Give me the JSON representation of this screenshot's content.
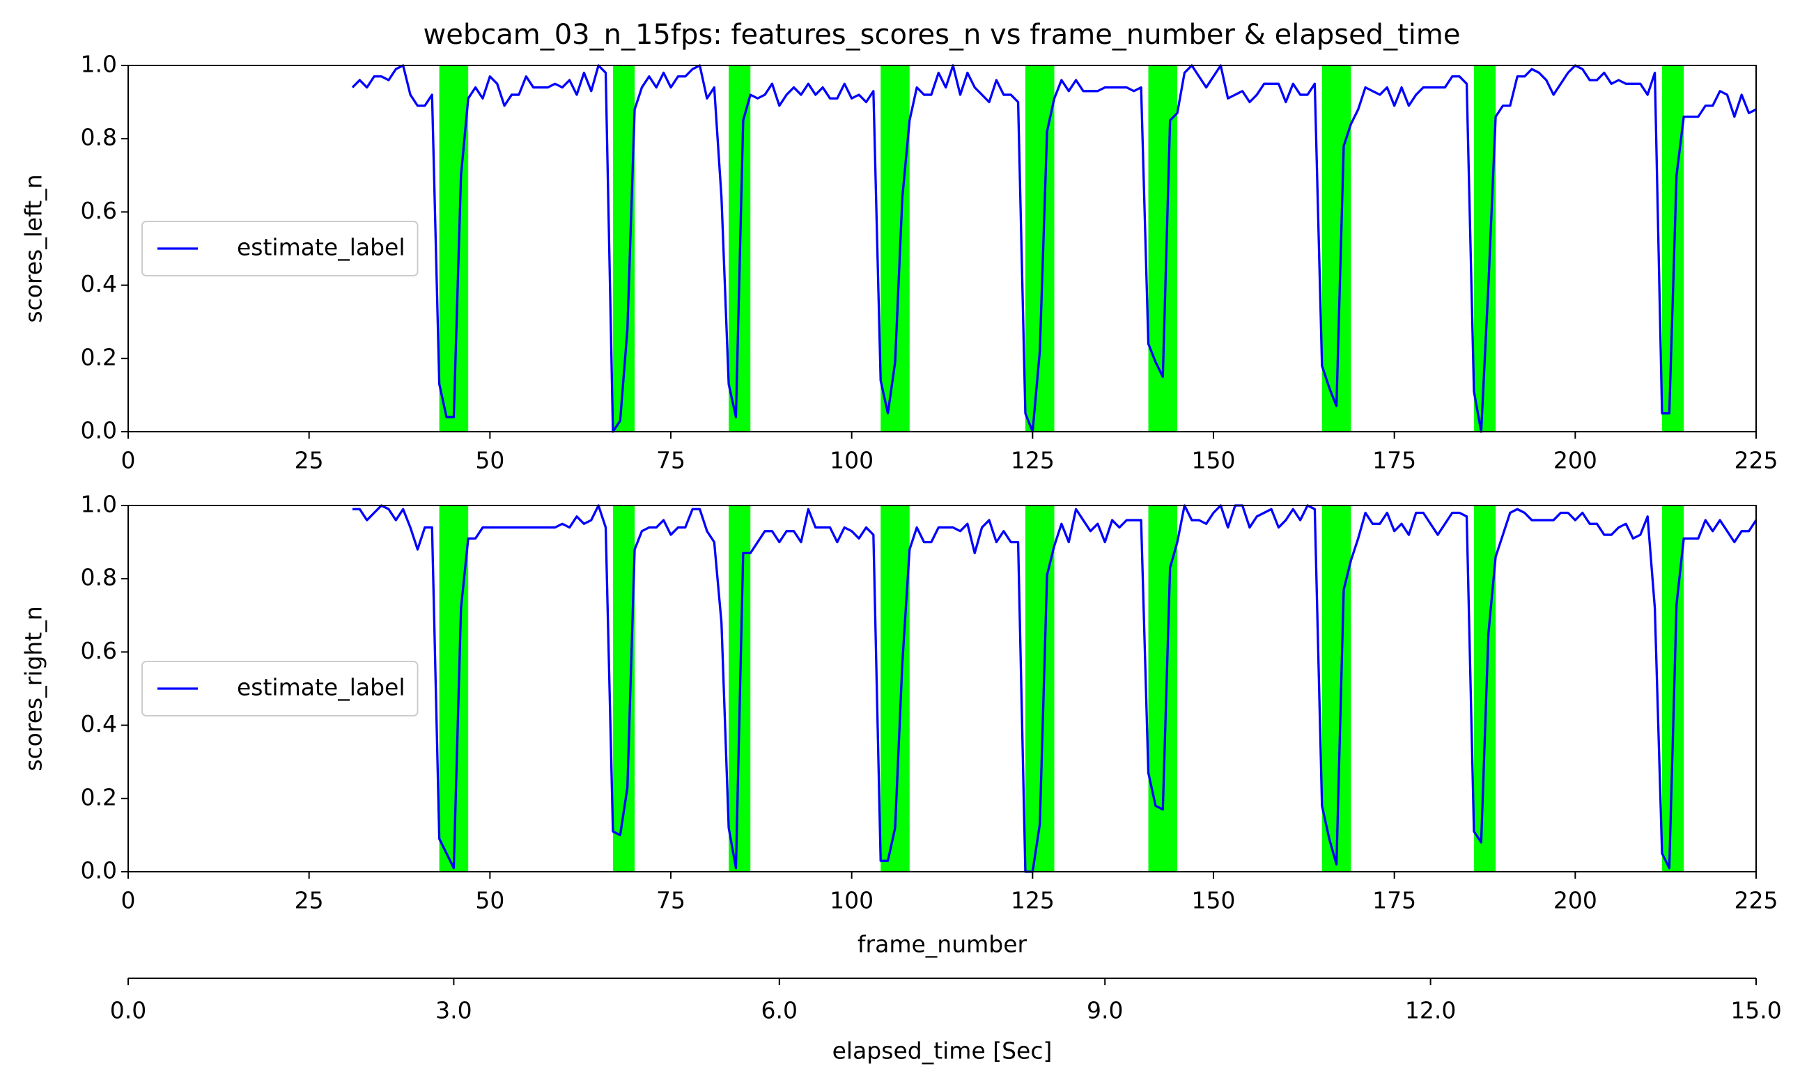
{
  "chart_data": [
    {
      "type": "line",
      "title": "webcam_03_n_15fps: features_scores_n vs frame_number & elapsed_time",
      "ylabel": "scores_left_n",
      "xlim": [
        0,
        225
      ],
      "xticks": [
        0,
        25,
        50,
        75,
        100,
        125,
        150,
        175,
        200,
        225
      ],
      "ylim": [
        0,
        1
      ],
      "yticks": [
        {
          "value": 0,
          "label": "0.0"
        },
        {
          "value": 0.2,
          "label": "0.2"
        },
        {
          "value": 0.4,
          "label": "0.4"
        },
        {
          "value": 0.6,
          "label": "0.6"
        },
        {
          "value": 0.8,
          "label": "0.8"
        },
        {
          "value": 1,
          "label": "1.0"
        }
      ],
      "legend": "center left",
      "span_color": "#00ff00",
      "spans": [
        [
          43,
          47
        ],
        [
          67,
          70
        ],
        [
          83,
          86
        ],
        [
          104,
          108
        ],
        [
          124,
          128
        ],
        [
          141,
          145
        ],
        [
          165,
          169
        ],
        [
          186,
          189
        ],
        [
          212,
          215
        ]
      ],
      "x": [
        31,
        32,
        33,
        34,
        35,
        36,
        37,
        38,
        39,
        40,
        41,
        42,
        43,
        44,
        45,
        46,
        47,
        48,
        49,
        50,
        51,
        52,
        53,
        54,
        55,
        56,
        57,
        58,
        59,
        60,
        61,
        62,
        63,
        64,
        65,
        66,
        67,
        68,
        69,
        70,
        71,
        72,
        73,
        74,
        75,
        76,
        77,
        78,
        79,
        80,
        81,
        82,
        83,
        84,
        85,
        86,
        87,
        88,
        89,
        90,
        91,
        92,
        93,
        94,
        95,
        96,
        97,
        98,
        99,
        100,
        101,
        102,
        103,
        104,
        105,
        106,
        107,
        108,
        109,
        110,
        111,
        112,
        113,
        114,
        115,
        116,
        117,
        118,
        119,
        120,
        121,
        122,
        123,
        124,
        125,
        126,
        127,
        128,
        129,
        130,
        131,
        132,
        133,
        134,
        135,
        136,
        137,
        138,
        139,
        140,
        141,
        142,
        143,
        144,
        145,
        146,
        147,
        148,
        149,
        150,
        151,
        152,
        153,
        154,
        155,
        156,
        157,
        158,
        159,
        160,
        161,
        162,
        163,
        164,
        165,
        166,
        167,
        168,
        169,
        170,
        171,
        172,
        173,
        174,
        175,
        176,
        177,
        178,
        179,
        180,
        181,
        182,
        183,
        184,
        185,
        186,
        187,
        188,
        189,
        190,
        191,
        192,
        193,
        194,
        195,
        196,
        197,
        198,
        199,
        200,
        201,
        202,
        203,
        204,
        205,
        206,
        207,
        208,
        209,
        210,
        211,
        212,
        213,
        214,
        215,
        216,
        217,
        218,
        219,
        220,
        221,
        222,
        223,
        224,
        225
      ],
      "series": [
        {
          "name": "estimate_label",
          "color": "#0000ff",
          "values": [
            0.94,
            0.96,
            0.94,
            0.97,
            0.97,
            0.96,
            0.99,
            1.0,
            0.92,
            0.89,
            0.89,
            0.92,
            0.13,
            0.04,
            0.04,
            0.7,
            0.91,
            0.94,
            0.91,
            0.97,
            0.95,
            0.89,
            0.92,
            0.92,
            0.97,
            0.94,
            0.94,
            0.94,
            0.95,
            0.94,
            0.96,
            0.92,
            0.98,
            0.93,
            1.0,
            0.98,
            0.0,
            0.03,
            0.28,
            0.88,
            0.94,
            0.97,
            0.94,
            0.98,
            0.94,
            0.97,
            0.97,
            0.99,
            1.0,
            0.91,
            0.94,
            0.64,
            0.13,
            0.04,
            0.85,
            0.92,
            0.91,
            0.92,
            0.95,
            0.89,
            0.92,
            0.94,
            0.92,
            0.95,
            0.92,
            0.94,
            0.91,
            0.91,
            0.95,
            0.91,
            0.92,
            0.9,
            0.93,
            0.14,
            0.05,
            0.19,
            0.64,
            0.85,
            0.94,
            0.92,
            0.92,
            0.98,
            0.94,
            1.0,
            0.92,
            0.98,
            0.94,
            0.92,
            0.9,
            0.96,
            0.92,
            0.92,
            0.9,
            0.05,
            0.0,
            0.22,
            0.82,
            0.91,
            0.96,
            0.93,
            0.96,
            0.93,
            0.93,
            0.93,
            0.94,
            0.94,
            0.94,
            0.94,
            0.93,
            0.94,
            0.24,
            0.19,
            0.15,
            0.85,
            0.87,
            0.98,
            1.0,
            0.97,
            0.94,
            0.97,
            1.0,
            0.91,
            0.92,
            0.93,
            0.9,
            0.92,
            0.95,
            0.95,
            0.95,
            0.9,
            0.95,
            0.92,
            0.92,
            0.95,
            0.18,
            0.12,
            0.07,
            0.78,
            0.84,
            0.88,
            0.94,
            0.93,
            0.92,
            0.94,
            0.89,
            0.94,
            0.89,
            0.92,
            0.94,
            0.94,
            0.94,
            0.94,
            0.97,
            0.97,
            0.95,
            0.11,
            0.0,
            0.4,
            0.86,
            0.89,
            0.89,
            0.97,
            0.97,
            0.99,
            0.98,
            0.96,
            0.92,
            0.95,
            0.98,
            1.0,
            0.99,
            0.96,
            0.96,
            0.98,
            0.95,
            0.96,
            0.95,
            0.95,
            0.95,
            0.92,
            0.98,
            0.05,
            0.05,
            0.7,
            0.86,
            0.86,
            0.86,
            0.89,
            0.89,
            0.93,
            0.92,
            0.86,
            0.92,
            0.87,
            0.88
          ]
        }
      ]
    },
    {
      "type": "line",
      "ylabel": "scores_right_n",
      "xlabel": "frame_number",
      "xlim": [
        0,
        225
      ],
      "xticks": [
        0,
        25,
        50,
        75,
        100,
        125,
        150,
        175,
        200,
        225
      ],
      "ylim": [
        0,
        1
      ],
      "yticks": [
        {
          "value": 0,
          "label": "0.0"
        },
        {
          "value": 0.2,
          "label": "0.2"
        },
        {
          "value": 0.4,
          "label": "0.4"
        },
        {
          "value": 0.6,
          "label": "0.6"
        },
        {
          "value": 0.8,
          "label": "0.8"
        },
        {
          "value": 1,
          "label": "1.0"
        }
      ],
      "legend": "center left",
      "span_color": "#00ff00",
      "spans": [
        [
          43,
          47
        ],
        [
          67,
          70
        ],
        [
          83,
          86
        ],
        [
          104,
          108
        ],
        [
          124,
          128
        ],
        [
          141,
          145
        ],
        [
          165,
          169
        ],
        [
          186,
          189
        ],
        [
          212,
          215
        ]
      ],
      "x": [
        31,
        32,
        33,
        34,
        35,
        36,
        37,
        38,
        39,
        40,
        41,
        42,
        43,
        44,
        45,
        46,
        47,
        48,
        49,
        50,
        51,
        52,
        53,
        54,
        55,
        56,
        57,
        58,
        59,
        60,
        61,
        62,
        63,
        64,
        65,
        66,
        67,
        68,
        69,
        70,
        71,
        72,
        73,
        74,
        75,
        76,
        77,
        78,
        79,
        80,
        81,
        82,
        83,
        84,
        85,
        86,
        87,
        88,
        89,
        90,
        91,
        92,
        93,
        94,
        95,
        96,
        97,
        98,
        99,
        100,
        101,
        102,
        103,
        104,
        105,
        106,
        107,
        108,
        109,
        110,
        111,
        112,
        113,
        114,
        115,
        116,
        117,
        118,
        119,
        120,
        121,
        122,
        123,
        124,
        125,
        126,
        127,
        128,
        129,
        130,
        131,
        132,
        133,
        134,
        135,
        136,
        137,
        138,
        139,
        140,
        141,
        142,
        143,
        144,
        145,
        146,
        147,
        148,
        149,
        150,
        151,
        152,
        153,
        154,
        155,
        156,
        157,
        158,
        159,
        160,
        161,
        162,
        163,
        164,
        165,
        166,
        167,
        168,
        169,
        170,
        171,
        172,
        173,
        174,
        175,
        176,
        177,
        178,
        179,
        180,
        181,
        182,
        183,
        184,
        185,
        186,
        187,
        188,
        189,
        190,
        191,
        192,
        193,
        194,
        195,
        196,
        197,
        198,
        199,
        200,
        201,
        202,
        203,
        204,
        205,
        206,
        207,
        208,
        209,
        210,
        211,
        212,
        213,
        214,
        215,
        216,
        217,
        218,
        219,
        220,
        221,
        222,
        223,
        224,
        225
      ],
      "series": [
        {
          "name": "estimate_label",
          "color": "#0000ff",
          "values": [
            0.99,
            0.99,
            0.96,
            0.98,
            1.0,
            0.99,
            0.96,
            0.99,
            0.94,
            0.88,
            0.94,
            0.94,
            0.09,
            0.05,
            0.01,
            0.72,
            0.91,
            0.91,
            0.94,
            0.94,
            0.94,
            0.94,
            0.94,
            0.94,
            0.94,
            0.94,
            0.94,
            0.94,
            0.94,
            0.95,
            0.94,
            0.97,
            0.95,
            0.96,
            1.0,
            0.94,
            0.11,
            0.1,
            0.23,
            0.88,
            0.93,
            0.94,
            0.94,
            0.96,
            0.92,
            0.94,
            0.94,
            0.99,
            0.99,
            0.93,
            0.9,
            0.68,
            0.12,
            0.01,
            0.87,
            0.87,
            0.9,
            0.93,
            0.93,
            0.9,
            0.93,
            0.93,
            0.9,
            0.99,
            0.94,
            0.94,
            0.94,
            0.9,
            0.94,
            0.93,
            0.91,
            0.94,
            0.92,
            0.03,
            0.03,
            0.12,
            0.57,
            0.88,
            0.94,
            0.9,
            0.9,
            0.94,
            0.94,
            0.94,
            0.93,
            0.95,
            0.87,
            0.94,
            0.96,
            0.9,
            0.93,
            0.9,
            0.9,
            0.0,
            0.0,
            0.13,
            0.81,
            0.89,
            0.95,
            0.9,
            0.99,
            0.96,
            0.93,
            0.95,
            0.9,
            0.96,
            0.94,
            0.96,
            0.96,
            0.96,
            0.27,
            0.18,
            0.17,
            0.83,
            0.9,
            1.0,
            0.96,
            0.96,
            0.95,
            0.98,
            1.0,
            0.94,
            1.0,
            1.0,
            0.94,
            0.97,
            0.98,
            0.99,
            0.94,
            0.96,
            0.99,
            0.96,
            1.0,
            0.99,
            0.18,
            0.09,
            0.02,
            0.77,
            0.85,
            0.91,
            0.98,
            0.95,
            0.95,
            0.98,
            0.93,
            0.95,
            0.92,
            0.98,
            0.98,
            0.95,
            0.92,
            0.95,
            0.98,
            0.98,
            0.97,
            0.11,
            0.08,
            0.65,
            0.86,
            0.92,
            0.98,
            0.99,
            0.98,
            0.96,
            0.96,
            0.96,
            0.96,
            0.98,
            0.98,
            0.96,
            0.98,
            0.95,
            0.95,
            0.92,
            0.92,
            0.94,
            0.95,
            0.91,
            0.92,
            0.97,
            0.72,
            0.05,
            0.01,
            0.73,
            0.91,
            0.91,
            0.91,
            0.96,
            0.93,
            0.96,
            0.93,
            0.9,
            0.93,
            0.93,
            0.96
          ]
        }
      ]
    },
    {
      "type": "axis",
      "xlabel": "elapsed_time [Sec]",
      "xlim": [
        0,
        15
      ],
      "xticks": [
        {
          "value": 0,
          "label": "0.0"
        },
        {
          "value": 3,
          "label": "3.0"
        },
        {
          "value": 6,
          "label": "6.0"
        },
        {
          "value": 9,
          "label": "9.0"
        },
        {
          "value": 12,
          "label": "12.0"
        },
        {
          "value": 15,
          "label": "15.0"
        }
      ]
    }
  ]
}
